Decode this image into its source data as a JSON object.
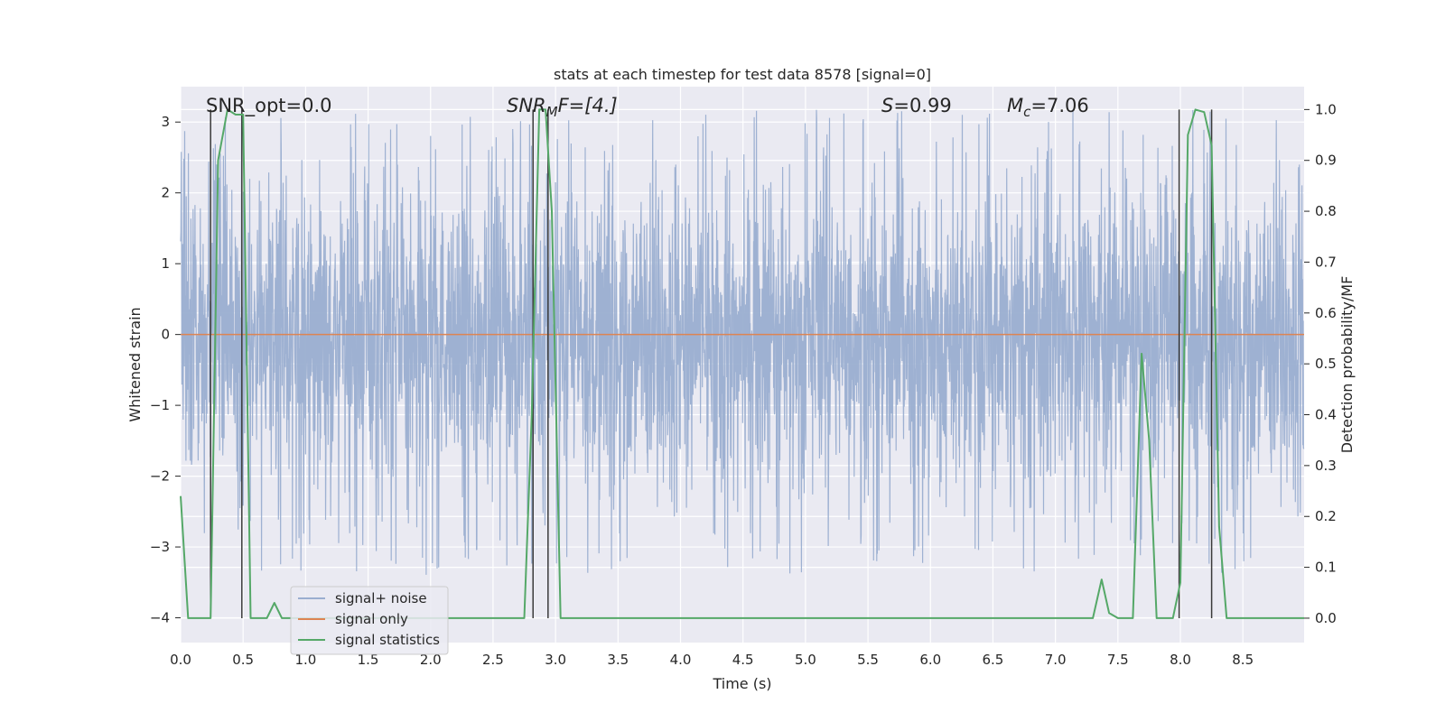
{
  "chart_data": {
    "type": "line",
    "title": "stats at each timestep for test data 8578 [signal=0]",
    "xlabel": "Time (s)",
    "ylabel_left": "Whitened strain",
    "ylabel_right": "Detection probability/MF",
    "xlim": [
      0.0,
      8.99
    ],
    "ylim_left": [
      -4.35,
      3.5
    ],
    "ylim_right": [
      -0.048,
      1.045
    ],
    "xticks": [
      0.0,
      0.5,
      1.0,
      1.5,
      2.0,
      2.5,
      3.0,
      3.5,
      4.0,
      4.5,
      5.0,
      5.5,
      6.0,
      6.5,
      7.0,
      7.5,
      8.0,
      8.5
    ],
    "xtick_labels": [
      "0.0",
      "0.5",
      "1.0",
      "1.5",
      "2.0",
      "2.5",
      "3.0",
      "3.5",
      "4.0",
      "4.5",
      "5.0",
      "5.5",
      "6.0",
      "6.5",
      "7.0",
      "7.5",
      "8.0",
      "8.5"
    ],
    "yticks_left": [
      -4,
      -3,
      -2,
      -1,
      0,
      1,
      2,
      3
    ],
    "ytick_labels_left": [
      "−4",
      "−3",
      "−2",
      "−1",
      "0",
      "1",
      "2",
      "3"
    ],
    "yticks_right": [
      0.0,
      0.1,
      0.2,
      0.3,
      0.4,
      0.5,
      0.6,
      0.7,
      0.8,
      0.9,
      1.0
    ],
    "ytick_labels_right": [
      "0.0",
      "0.1",
      "0.2",
      "0.3",
      "0.4",
      "0.5",
      "0.6",
      "0.7",
      "0.8",
      "0.9",
      "1.0"
    ],
    "grid": true,
    "series": [
      {
        "name": "signal+ noise",
        "color": "#9aaed0",
        "axis": "left",
        "kind": "noise-band",
        "sample_rate_hz": 400,
        "envelope_std": 0.9,
        "upper_peak_range": [
          1.4,
          3.2
        ],
        "lower_peak_range": [
          -3.4,
          -1.5
        ]
      },
      {
        "name": "signal only",
        "color": "#dd8452",
        "axis": "left",
        "x": [
          0.0,
          8.99
        ],
        "y": [
          0.0,
          0.0
        ]
      },
      {
        "name": "signal statistics",
        "color": "#55a868",
        "axis": "right",
        "x": [
          0.0,
          0.06,
          0.12,
          0.18,
          0.24,
          0.27,
          0.3,
          0.375,
          0.44,
          0.5,
          0.56,
          0.62,
          0.69,
          0.75,
          0.81,
          0.88,
          0.94,
          1.0,
          2.5,
          2.75,
          2.81,
          2.87,
          2.92,
          2.97,
          3.04,
          3.08,
          3.2,
          4.0,
          5.0,
          6.0,
          7.0,
          7.3,
          7.37,
          7.43,
          7.5,
          7.56,
          7.62,
          7.69,
          7.75,
          7.81,
          7.87,
          7.94,
          8.0,
          8.06,
          8.12,
          8.19,
          8.25,
          8.31,
          8.37,
          8.44,
          8.5,
          8.99
        ],
        "y": [
          0.24,
          0.0,
          0.0,
          0.0,
          0.0,
          0.45,
          0.9,
          1.0,
          0.99,
          0.99,
          0.0,
          0.0,
          0.0,
          0.03,
          0.0,
          0.0,
          0.0,
          0.0,
          0.0,
          0.0,
          0.4,
          1.0,
          1.0,
          0.8,
          0.0,
          0.0,
          0.0,
          0.0,
          0.0,
          0.0,
          0.0,
          0.0,
          0.076,
          0.01,
          0.0,
          0.0,
          0.0,
          0.52,
          0.35,
          0.0,
          0.0,
          0.0,
          0.07,
          0.95,
          1.0,
          0.995,
          0.93,
          0.18,
          0.0,
          0.0,
          0.0,
          0.0
        ]
      }
    ],
    "vertical_lines": {
      "color": "#3a3a3a",
      "x": [
        0.24,
        0.49,
        2.82,
        2.94,
        7.99,
        8.25
      ]
    },
    "annotations": {
      "snr_opt": "SNR_opt=0.0",
      "snr_mf_base": "SNR",
      "snr_mf_sub": "M",
      "snr_mf_rest": "F=[4.]",
      "s_var": "S",
      "s_rest": "=0.99",
      "mc_base": "M",
      "mc_sub": "c",
      "mc_rest": "=7.06"
    },
    "legend": {
      "placement": "lower-left",
      "entries": [
        "signal+ noise",
        "signal only",
        "signal statistics"
      ]
    }
  }
}
